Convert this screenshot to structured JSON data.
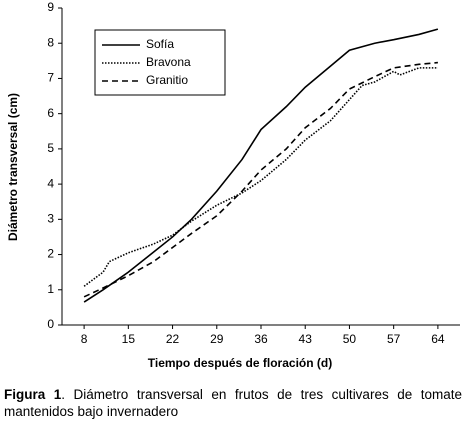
{
  "chart_data": {
    "type": "line",
    "xlabel": "Tiempo después de floración (d)",
    "ylabel": "Diámetro transversal (cm)",
    "caption_label": "Figura 1",
    "caption": ". Diámetro transversal en frutos de tres cultivares de tomate mantenidos bajo invernadero",
    "xlim": [
      4.5,
      67.5
    ],
    "xticks": [
      8,
      15,
      22,
      29,
      36,
      43,
      50,
      57,
      64
    ],
    "ylim": [
      0,
      9
    ],
    "yticks": [
      0,
      1,
      2,
      3,
      4,
      5,
      6,
      7,
      8,
      9
    ],
    "legend": "upper left",
    "series": [
      {
        "name": "Sofía",
        "color": "#000000",
        "style": "solid",
        "x": [
          8,
          11,
          15,
          22,
          25,
          29,
          33,
          36,
          40,
          43,
          47,
          50,
          54,
          57,
          61,
          64
        ],
        "values": [
          0.65,
          1.0,
          1.5,
          2.5,
          3.0,
          3.8,
          4.7,
          5.55,
          6.2,
          6.75,
          7.35,
          7.8,
          8.0,
          8.1,
          8.25,
          8.4
        ]
      },
      {
        "name": "Bravona",
        "color": "#000000",
        "style": "dotted",
        "x": [
          8,
          11,
          12,
          15,
          19,
          22,
          25,
          29,
          33,
          36,
          40,
          43,
          47,
          50,
          52,
          54,
          57,
          58,
          61,
          64
        ],
        "values": [
          1.1,
          1.5,
          1.8,
          2.05,
          2.3,
          2.55,
          2.95,
          3.4,
          3.75,
          4.1,
          4.7,
          5.25,
          5.8,
          6.4,
          6.8,
          6.9,
          7.2,
          7.1,
          7.3,
          7.3
        ]
      },
      {
        "name": "Granitio",
        "color": "#000000",
        "style": "dashed",
        "x": [
          8,
          11,
          15,
          19,
          22,
          25,
          29,
          33,
          36,
          40,
          43,
          47,
          50,
          54,
          57,
          61,
          64
        ],
        "values": [
          0.8,
          1.05,
          1.4,
          1.8,
          2.2,
          2.6,
          3.1,
          3.8,
          4.4,
          5.0,
          5.6,
          6.15,
          6.7,
          7.05,
          7.3,
          7.4,
          7.45
        ]
      }
    ]
  }
}
